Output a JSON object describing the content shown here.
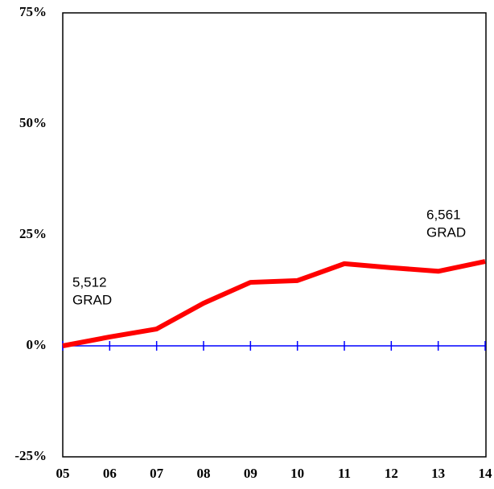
{
  "chart_data": {
    "type": "line",
    "categories": [
      "05",
      "06",
      "07",
      "08",
      "09",
      "10",
      "11",
      "12",
      "13",
      "14"
    ],
    "series": [
      {
        "color": "#ff0000",
        "values": [
          0,
          2.0,
          3.8,
          9.6,
          14.3,
          14.7,
          18.5,
          17.6,
          16.8,
          19.0
        ]
      }
    ],
    "ylim": [
      -25,
      75
    ],
    "yticks": [
      {
        "value": -25,
        "label": "-25%"
      },
      {
        "value": 0,
        "label": "0%"
      },
      {
        "value": 25,
        "label": "25%"
      },
      {
        "value": 50,
        "label": "50%"
      },
      {
        "value": 75,
        "label": "75%"
      }
    ],
    "zero_line_color": "#0000ff",
    "annotations": [
      {
        "lines": [
          "5,512",
          "GRAD"
        ]
      },
      {
        "lines": [
          "6,561",
          "GRAD"
        ]
      }
    ]
  }
}
